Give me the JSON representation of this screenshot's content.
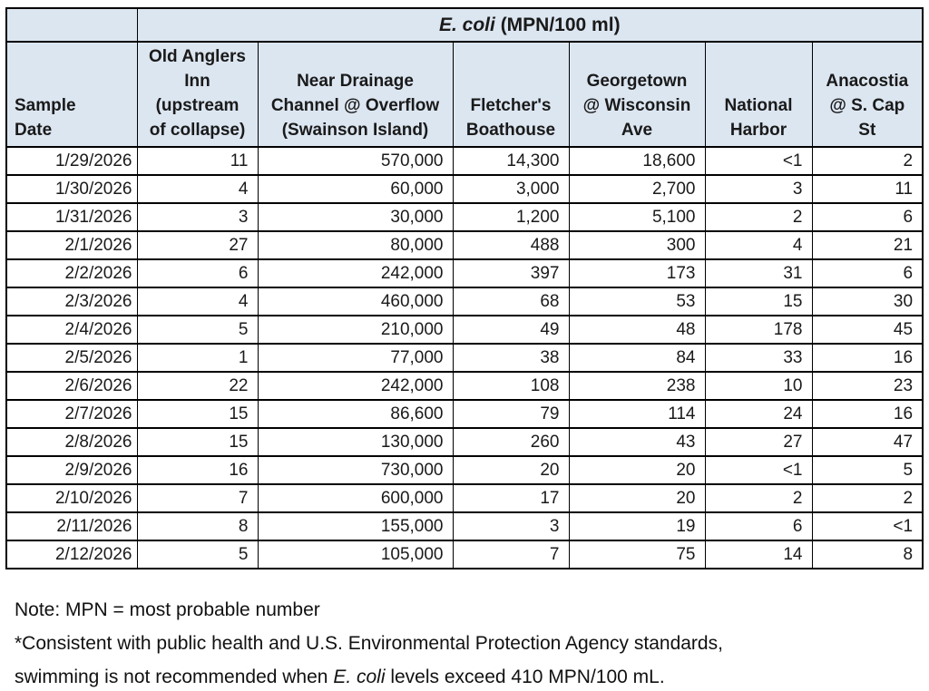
{
  "colors": {
    "header_bg": "#dce6f1",
    "border": "#000000",
    "text": "#1a1a1a"
  },
  "table": {
    "title_italic": "E. coli",
    "title_rest": " (MPN/100 ml)",
    "sample_date_header": "Sample\nDate",
    "site_headers": [
      "Old Anglers\nInn\n(upstream\nof collapse)",
      "Near Drainage\nChannel @ Overflow\n(Swainson Island)",
      "Fletcher's\nBoathouse",
      "Georgetown\n@ Wisconsin\nAve",
      "National\nHarbor",
      "Anacostia\n@ S. Cap\nSt"
    ]
  },
  "chart_data": {
    "type": "table",
    "title": "E. coli (MPN/100 ml)",
    "unit": "MPN/100 ml",
    "columns": [
      "Sample Date",
      "Old Anglers Inn (upstream of collapse)",
      "Near Drainage Channel @ Overflow (Swainson Island)",
      "Fletcher's Boathouse",
      "Georgetown @ Wisconsin Ave",
      "National Harbor",
      "Anacostia @ S. Cap St"
    ],
    "rows": [
      [
        "1/29/2026",
        "11",
        "570,000",
        "14,300",
        "18,600",
        "<1",
        "2"
      ],
      [
        "1/30/2026",
        "4",
        "60,000",
        "3,000",
        "2,700",
        "3",
        "11"
      ],
      [
        "1/31/2026",
        "3",
        "30,000",
        "1,200",
        "5,100",
        "2",
        "6"
      ],
      [
        "2/1/2026",
        "27",
        "80,000",
        "488",
        "300",
        "4",
        "21"
      ],
      [
        "2/2/2026",
        "6",
        "242,000",
        "397",
        "173",
        "31",
        "6"
      ],
      [
        "2/3/2026",
        "4",
        "460,000",
        "68",
        "53",
        "15",
        "30"
      ],
      [
        "2/4/2026",
        "5",
        "210,000",
        "49",
        "48",
        "178",
        "45"
      ],
      [
        "2/5/2026",
        "1",
        "77,000",
        "38",
        "84",
        "33",
        "16"
      ],
      [
        "2/6/2026",
        "22",
        "242,000",
        "108",
        "238",
        "10",
        "23"
      ],
      [
        "2/7/2026",
        "15",
        "86,600",
        "79",
        "114",
        "24",
        "16"
      ],
      [
        "2/8/2026",
        "15",
        "130,000",
        "260",
        "43",
        "27",
        "47"
      ],
      [
        "2/9/2026",
        "16",
        "730,000",
        "20",
        "20",
        "<1",
        "5"
      ],
      [
        "2/10/2026",
        "7",
        "600,000",
        "17",
        "20",
        "2",
        "2"
      ],
      [
        "2/11/2026",
        "8",
        "155,000",
        "3",
        "19",
        "6",
        "<1"
      ],
      [
        "2/12/2026",
        "5",
        "105,000",
        "7",
        "75",
        "14",
        "8"
      ]
    ]
  },
  "notes": {
    "line1": "Note: MPN = most probable number",
    "line2": "*Consistent with public health and U.S. Environmental Protection Agency standards,",
    "line3_before": "swimming is not recommended when ",
    "line3_italic": "E. coli",
    "line3_after": " levels exceed 410 MPN/100 mL."
  }
}
